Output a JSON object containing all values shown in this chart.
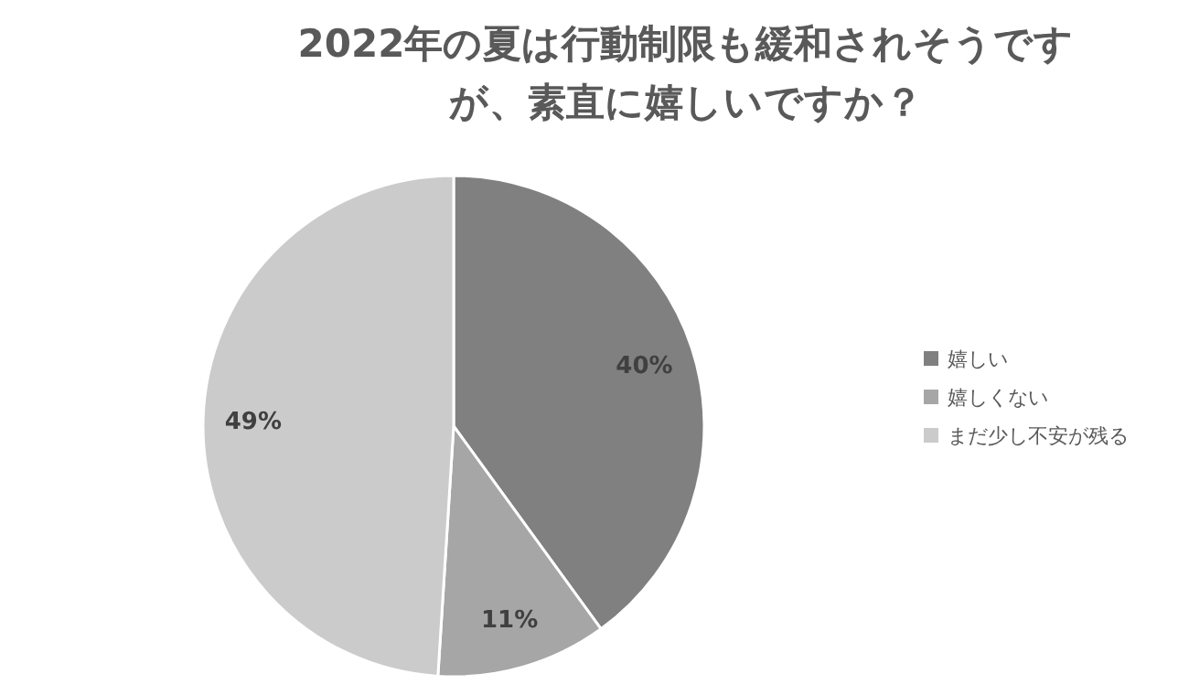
{
  "chart_data": {
    "type": "pie",
    "title": "2022年の夏は行動制限も緩和されそうですが、素直に嬉しいですか？",
    "categories": [
      "嬉しい",
      "嬉しくない",
      "まだ少し不安が残る"
    ],
    "values": [
      40,
      11,
      49
    ],
    "colors": [
      "#808080",
      "#a6a6a6",
      "#cbcbcb"
    ],
    "value_labels": [
      "40%",
      "11%",
      "49%"
    ],
    "legend": "right"
  }
}
